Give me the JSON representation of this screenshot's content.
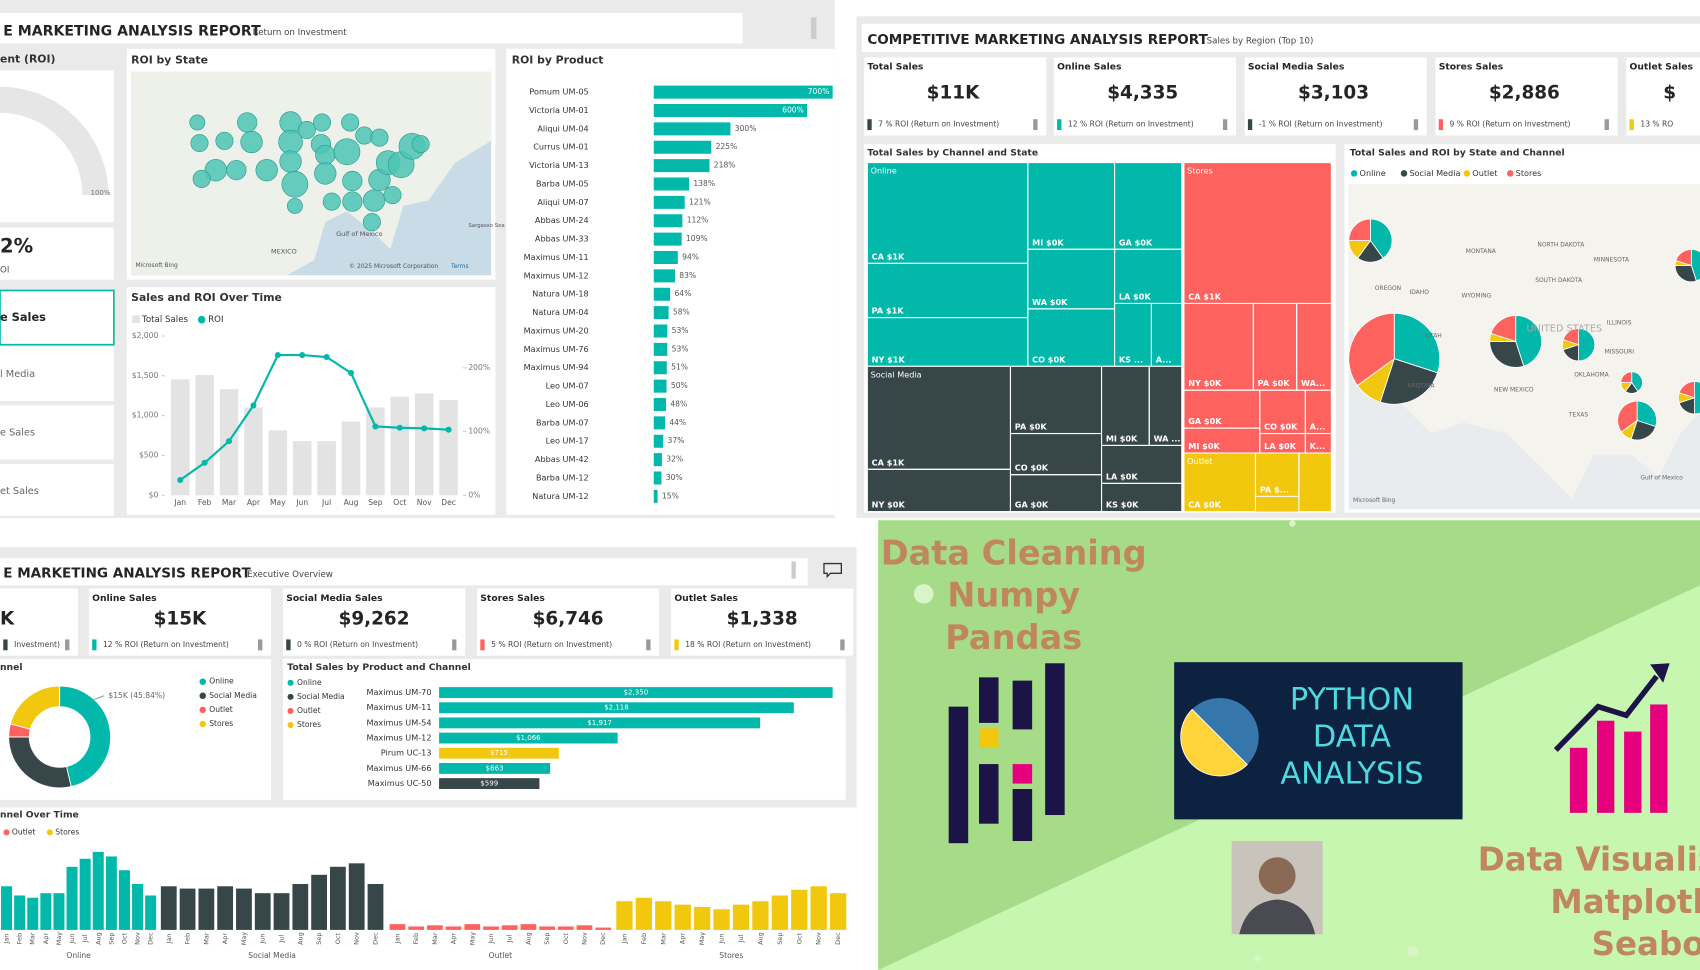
{
  "roi_report": {
    "title": "E MARKETING ANALYSIS REPORT",
    "subtitle": "Return on Investment",
    "gauge": {
      "title": "ent (ROI)",
      "max_label": "100%",
      "value_text": "2%",
      "caption": "OI"
    },
    "side_cards": [
      "e Sales",
      "l Media",
      "e Sales",
      "et Sales"
    ],
    "map": {
      "title": "ROI by State",
      "labels": [
        "MEXICO",
        "Gulf of Mexico",
        "Sargasso Sea",
        "Microsoft Bing",
        "© 2025 Microsoft Corporation",
        "Terms"
      ]
    },
    "product_chart": {
      "type": "bar",
      "title": "ROI by Product",
      "color": "#01b8aa",
      "categories": [
        "Pomum UM-05",
        "Victoria UM-01",
        "Aliqui UM-04",
        "Currus UM-01",
        "Victoria UM-13",
        "Barba UM-05",
        "Aliqui UM-07",
        "Abbas UM-24",
        "Abbas UM-33",
        "Maximus UM-11",
        "Maximus UM-12",
        "Natura UM-18",
        "Natura UM-04",
        "Maximus UM-20",
        "Maximus UM-76",
        "Maximus UM-94",
        "Leo UM-07",
        "Leo UM-06",
        "Barba UM-07",
        "Leo UM-17",
        "Abbas UM-42",
        "Barba UM-12",
        "Natura UM-12"
      ],
      "values": [
        700,
        600,
        300,
        225,
        218,
        138,
        121,
        112,
        109,
        94,
        83,
        64,
        58,
        53,
        53,
        51,
        50,
        48,
        44,
        37,
        32,
        30,
        15
      ],
      "value_labels": [
        "700%",
        "600%",
        "300%",
        "225%",
        "218%",
        "138%",
        "121%",
        "112%",
        "109%",
        "94%",
        "83%",
        "64%",
        "58%",
        "53%",
        "53%",
        "51%",
        "50%",
        "48%",
        "44%",
        "37%",
        "32%",
        "30%",
        "15%"
      ]
    },
    "time_chart": {
      "type": "bar-line",
      "title": "Sales and ROI Over Time",
      "categories": [
        "Jan",
        "Feb",
        "Mar",
        "Apr",
        "May",
        "Jun",
        "Jul",
        "Aug",
        "Sep",
        "Oct",
        "Nov",
        "Dec"
      ],
      "series": [
        {
          "name": "Total Sales",
          "color": "#e3e3e3",
          "values": [
            1456,
            1510,
            1333,
            1102,
            816,
            680,
            680,
            925,
            1102,
            1238,
            1279,
            1197
          ]
        },
        {
          "name": "ROI",
          "color": "#01b8aa",
          "axis": "y2",
          "values": [
            24,
            51,
            85,
            141,
            220,
            220,
            217,
            192,
            108,
            106,
            105,
            103
          ]
        }
      ],
      "ylim": [
        0,
        2000
      ],
      "yticks": [
        {
          "value": 0,
          "label": "$0"
        },
        {
          "value": 500,
          "label": "$500"
        },
        {
          "value": 1000,
          "label": "$1,000"
        },
        {
          "value": 1500,
          "label": "$1,500"
        },
        {
          "value": 2000,
          "label": "$2,000"
        }
      ],
      "y2lim": [
        0,
        250
      ],
      "y2ticks": [
        {
          "value": 0,
          "label": "0%"
        },
        {
          "value": 100,
          "label": "100%"
        },
        {
          "value": 200,
          "label": "200%"
        }
      ]
    }
  },
  "competitive": {
    "title": "COMPETITIVE MARKETING ANALYSIS REPORT",
    "subtitle": "Sales by Region (Top 10)",
    "kpis": [
      {
        "label": "Total Sales",
        "value": "$11K",
        "roi": "7 % ROI (Return on Investment)",
        "color": "#374649"
      },
      {
        "label": "Online Sales",
        "value": "$4,335",
        "roi": "12 % ROI (Return on Investment)",
        "color": "#01b8aa"
      },
      {
        "label": "Social Media Sales",
        "value": "$3,103",
        "roi": "-1 % ROI (Return on Investment)",
        "color": "#374649"
      },
      {
        "label": "Stores Sales",
        "value": "$2,886",
        "roi": "9 % ROI (Return on Investment)",
        "color": "#fd625e"
      },
      {
        "label": "Outlet Sales",
        "value": "$",
        "roi": "13 % RO",
        "color": "#f2c80f"
      }
    ],
    "treemap": {
      "title": "Total Sales by Channel and State",
      "groups": [
        {
          "name": "Online",
          "color": "#01b8aa",
          "cells": [
            "CA $1K",
            "PA $1K",
            "NY $1K",
            "MI $0K",
            "WA $0K",
            "CO $0K",
            "GA $0K",
            "LA $0K",
            "KS ...",
            "A..."
          ]
        },
        {
          "name": "Stores",
          "color": "#fd625e",
          "cells": [
            "CA $1K",
            "NY $0K",
            "PA $0K",
            "WA...",
            "GA $0K",
            "CO $0K",
            "A...",
            "MI $0K",
            "LA $0K",
            "K..."
          ]
        },
        {
          "name": "Social Media",
          "color": "#374649",
          "cells": [
            "CA $1K",
            "NY $0K",
            "PA $0K",
            "CO $0K",
            "GA $0K",
            "MI $0K",
            "WA ...",
            "LA $0K",
            "KS $0K"
          ]
        },
        {
          "name": "Outlet",
          "color": "#f2c80f",
          "cells": [
            "CA $0K",
            "PA $..."
          ]
        }
      ]
    },
    "map": {
      "title": "Total Sales and ROI by State and Channel",
      "legend": [
        {
          "name": "Online",
          "color": "#01b8aa"
        },
        {
          "name": "Social Media",
          "color": "#374649"
        },
        {
          "name": "Outlet",
          "color": "#f2c80f"
        },
        {
          "name": "Stores",
          "color": "#fd625e"
        }
      ],
      "labels": [
        "MONTANA",
        "NORTH DAKOTA",
        "MINNESOTA",
        "OREGON",
        "IDAHO",
        "SOUTH DAKOTA",
        "WYOMING",
        "UNITED STATES",
        "UTAH",
        "ILLINOIS",
        "MISSOURI",
        "ARIZONA",
        "NEW MEXICO",
        "OKLAHOMA",
        "TEXAS",
        "Gulf of Mexico",
        "Microsoft Bing"
      ]
    }
  },
  "executive": {
    "title": "E MARKETING ANALYSIS REPORT",
    "subtitle": "Executive Overview",
    "kpis": [
      {
        "value": "K",
        "roi": "Investment)",
        "color": "#374649"
      },
      {
        "label": "Online Sales",
        "value": "$15K",
        "roi": "12 % ROI (Return on Investment)",
        "color": "#01b8aa"
      },
      {
        "label": "Social Media Sales",
        "value": "$9,262",
        "roi": "0 % ROI (Return on Investment)",
        "color": "#374649"
      },
      {
        "label": "Stores Sales",
        "value": "$6,746",
        "roi": "5 % ROI (Return on Investment)",
        "color": "#fd625e"
      },
      {
        "label": "Outlet Sales",
        "value": "$1,338",
        "roi": "18 % ROI (Return on Investment)",
        "color": "#f2c80f"
      }
    ],
    "donut": {
      "type": "donut",
      "title": "nnel",
      "categories": [
        "Online",
        "Social Media",
        "Outlet",
        "Stores"
      ],
      "colors": [
        "#01b8aa",
        "#374649",
        "#fd625e",
        "#f2c80f"
      ],
      "values": [
        15000,
        9262,
        1338,
        6746
      ],
      "label": "$15K (45.84%)"
    },
    "product_channel": {
      "type": "bar",
      "title": "Total Sales by Product and Channel",
      "legend": [
        {
          "name": "Online",
          "color": "#01b8aa"
        },
        {
          "name": "Social Media",
          "color": "#374649"
        },
        {
          "name": "Outlet",
          "color": "#fd625e"
        },
        {
          "name": "Stores",
          "color": "#f2c80f"
        }
      ],
      "categories": [
        "Maximus UM-70",
        "Maximus UM-11",
        "Maximus UM-54",
        "Maximus UM-12",
        "Pirum UC-13",
        "Maximus UM-66",
        "Maximus UC-50"
      ],
      "values": [
        2350,
        2118,
        1917,
        1066,
        715,
        663,
        599
      ],
      "value_labels": [
        "$2,350",
        "$2,118",
        "$1,917",
        "$1,066",
        "$715",
        "$663",
        "$599"
      ],
      "colors": [
        "#01b8aa",
        "#01b8aa",
        "#01b8aa",
        "#01b8aa",
        "#f2c80f",
        "#01b8aa",
        "#374649"
      ]
    },
    "channel_time": {
      "type": "bar",
      "title": "nnel Over Time",
      "categories": [
        "Jan",
        "Feb",
        "Mar",
        "Apr",
        "May",
        "Jun",
        "Jul",
        "Aug",
        "Sep",
        "Oct",
        "Nov",
        "Dec"
      ],
      "series": [
        {
          "name": "Online",
          "color": "#01b8aa",
          "values": [
            38,
            30,
            28,
            32,
            32,
            55,
            62,
            68,
            64,
            52,
            40,
            30
          ]
        },
        {
          "name": "Social Media",
          "color": "#374649",
          "values": [
            38,
            36,
            36,
            38,
            36,
            32,
            32,
            40,
            48,
            55,
            58,
            40
          ]
        },
        {
          "name": "Outlet",
          "color": "#fd625e",
          "values": [
            5,
            3,
            4,
            3,
            5,
            3,
            4,
            5,
            3,
            3,
            4,
            2
          ]
        },
        {
          "name": "Stores",
          "color": "#f2c80f",
          "values": [
            25,
            28,
            25,
            22,
            20,
            18,
            22,
            25,
            30,
            35,
            38,
            32
          ]
        }
      ]
    }
  },
  "promo": {
    "left_lines": [
      "Data Cleaning",
      "Numpy",
      "Pandas"
    ],
    "python_lines": [
      "PYTHON",
      "DATA",
      "ANALYSIS"
    ],
    "right_lines": [
      "Data Visualiz",
      "Matplotl",
      "Seaborn"
    ]
  }
}
